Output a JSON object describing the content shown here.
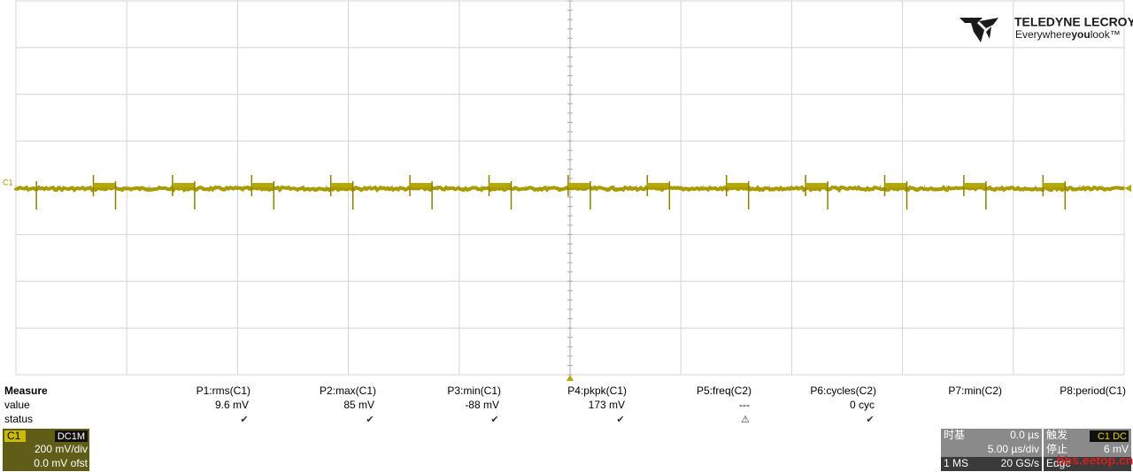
{
  "logo": {
    "brand": "TELEDYNE LECROY",
    "tagline_prefix": "Everywhere",
    "tagline_bold": "you",
    "tagline_suffix": "look™"
  },
  "trace_label": "C1",
  "measure": {
    "header": "Measure",
    "row_labels": [
      "value",
      "status"
    ],
    "params": [
      {
        "name": "P1:rms(C1)",
        "value": "9.6 mV",
        "status": "✔"
      },
      {
        "name": "P2:max(C1)",
        "value": "85 mV",
        "status": "✔"
      },
      {
        "name": "P3:min(C1)",
        "value": "-88 mV",
        "status": "✔"
      },
      {
        "name": "P4:pkpk(C1)",
        "value": "173 mV",
        "status": "✔"
      },
      {
        "name": "P5:freq(C2)",
        "value": "---",
        "status": "⚠"
      },
      {
        "name": "P6:cycles(C2)",
        "value": "0 cyc",
        "status": "✔"
      },
      {
        "name": "P7:min(C2)"
      },
      {
        "name": "P8:period(C1)"
      }
    ]
  },
  "channel": {
    "name": "C1",
    "coupling": "DC1M",
    "scale": "200 mV/div",
    "offset": "0.0 mV ofst"
  },
  "timebase": {
    "label": "时基",
    "delay": "0.0 µs",
    "scale": "5.00 µs/div",
    "points": "1 MS",
    "rate": "20 GS/s"
  },
  "trigger": {
    "label": "触发",
    "source": "C1 DC",
    "mode": "停止",
    "level": "6 mV",
    "type": "Edge"
  },
  "watermark": "bbs.eetop.cn"
}
